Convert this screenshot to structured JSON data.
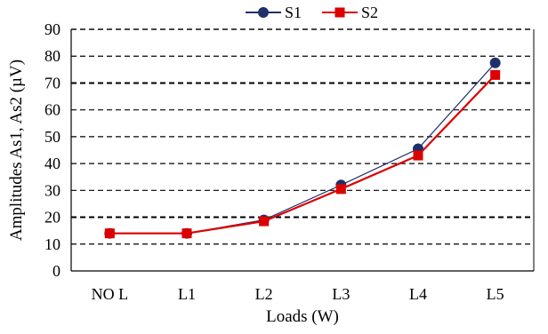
{
  "chart_data": {
    "type": "line",
    "title": "",
    "xlabel": "Loads  (W)",
    "ylabel": "Amplitudes  As1, As2  (µV)",
    "categories": [
      "NO L",
      "L1",
      "L2",
      "L3",
      "L4",
      "L5"
    ],
    "ylim": [
      0,
      90
    ],
    "yticks": [
      0,
      10,
      20,
      30,
      40,
      50,
      60,
      70,
      80,
      90
    ],
    "grid": "horizontal dashed",
    "legend_position": "top",
    "series": [
      {
        "name": "S1",
        "values": [
          14,
          14,
          19,
          32,
          45.5,
          77.5
        ],
        "color": "#1f2f6b",
        "marker": "circle"
      },
      {
        "name": "S2",
        "values": [
          14,
          14,
          18.5,
          30.5,
          43,
          73
        ],
        "color": "#dd0000",
        "marker": "square"
      }
    ]
  }
}
